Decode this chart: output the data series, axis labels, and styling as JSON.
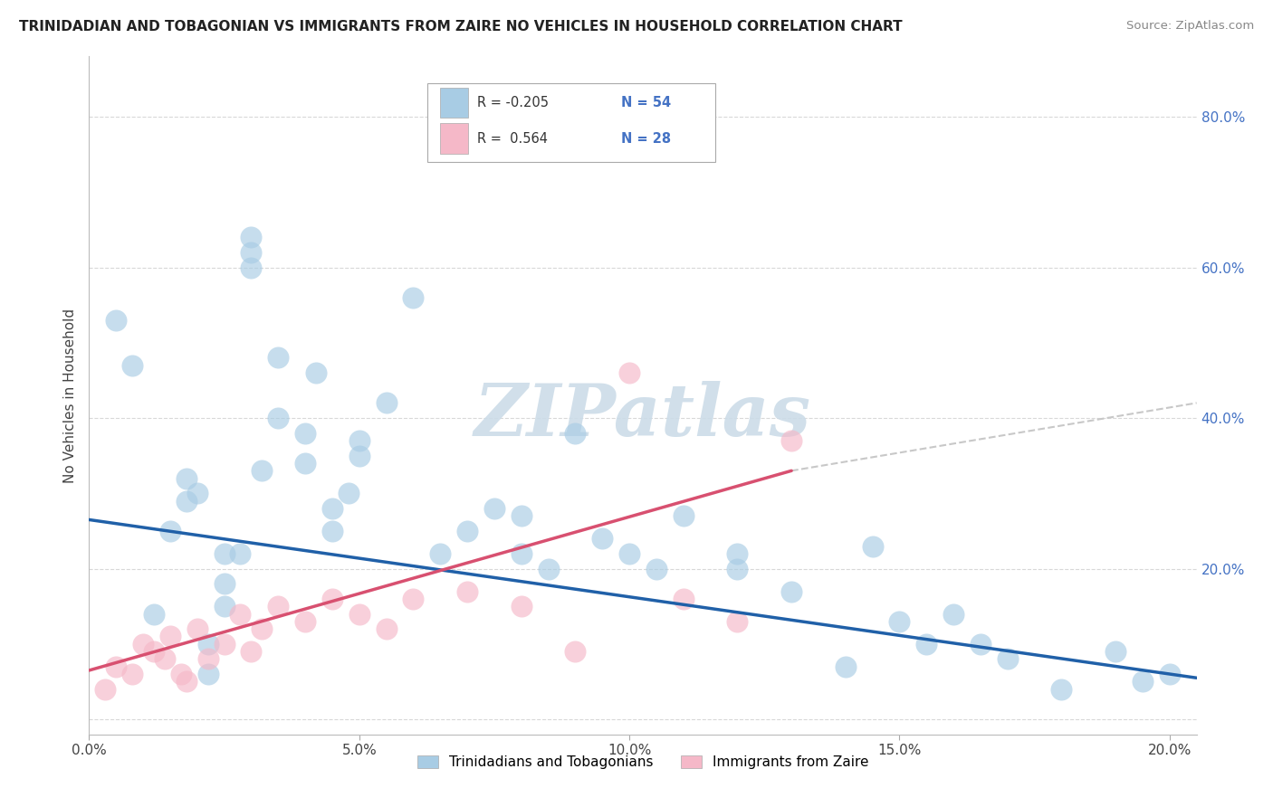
{
  "title": "TRINIDADIAN AND TOBAGONIAN VS IMMIGRANTS FROM ZAIRE NO VEHICLES IN HOUSEHOLD CORRELATION CHART",
  "source": "Source: ZipAtlas.com",
  "ylabel": "No Vehicles in Household",
  "xlim": [
    0.0,
    0.205
  ],
  "ylim": [
    -0.02,
    0.88
  ],
  "xticks": [
    0.0,
    0.05,
    0.1,
    0.15,
    0.2
  ],
  "xtick_labels": [
    "0.0%",
    "5.0%",
    "10.0%",
    "15.0%",
    "20.0%"
  ],
  "yticks": [
    0.0,
    0.2,
    0.4,
    0.6,
    0.8
  ],
  "ytick_labels_right": [
    "",
    "20.0%",
    "40.0%",
    "60.0%",
    "80.0%"
  ],
  "blue_color": "#a8cce4",
  "pink_color": "#f5b8c8",
  "blue_line_color": "#2060a8",
  "pink_line_color": "#d85070",
  "dash_line_color": "#c8c8c8",
  "legend_R_blue": "-0.205",
  "legend_N_blue": "54",
  "legend_R_pink": "0.564",
  "legend_N_pink": "28",
  "legend_label_blue": "Trinidadians and Tobagonians",
  "legend_label_pink": "Immigrants from Zaire",
  "watermark": "ZIPatlas",
  "blue_scatter_x": [
    0.005,
    0.008,
    0.012,
    0.015,
    0.018,
    0.018,
    0.02,
    0.022,
    0.022,
    0.025,
    0.025,
    0.025,
    0.028,
    0.03,
    0.03,
    0.03,
    0.032,
    0.035,
    0.035,
    0.04,
    0.04,
    0.042,
    0.045,
    0.045,
    0.048,
    0.05,
    0.05,
    0.055,
    0.06,
    0.065,
    0.07,
    0.075,
    0.08,
    0.08,
    0.085,
    0.09,
    0.095,
    0.1,
    0.105,
    0.11,
    0.12,
    0.12,
    0.13,
    0.14,
    0.145,
    0.15,
    0.155,
    0.16,
    0.165,
    0.17,
    0.18,
    0.19,
    0.195,
    0.2
  ],
  "blue_scatter_y": [
    0.53,
    0.47,
    0.14,
    0.25,
    0.32,
    0.29,
    0.3,
    0.1,
    0.06,
    0.18,
    0.22,
    0.15,
    0.22,
    0.64,
    0.6,
    0.62,
    0.33,
    0.48,
    0.4,
    0.34,
    0.38,
    0.46,
    0.28,
    0.25,
    0.3,
    0.35,
    0.37,
    0.42,
    0.56,
    0.22,
    0.25,
    0.28,
    0.22,
    0.27,
    0.2,
    0.38,
    0.24,
    0.22,
    0.2,
    0.27,
    0.22,
    0.2,
    0.17,
    0.07,
    0.23,
    0.13,
    0.1,
    0.14,
    0.1,
    0.08,
    0.04,
    0.09,
    0.05,
    0.06
  ],
  "pink_scatter_x": [
    0.003,
    0.005,
    0.008,
    0.01,
    0.012,
    0.014,
    0.015,
    0.017,
    0.018,
    0.02,
    0.022,
    0.025,
    0.028,
    0.03,
    0.032,
    0.035,
    0.04,
    0.045,
    0.05,
    0.055,
    0.06,
    0.07,
    0.08,
    0.09,
    0.1,
    0.11,
    0.12,
    0.13
  ],
  "pink_scatter_y": [
    0.04,
    0.07,
    0.06,
    0.1,
    0.09,
    0.08,
    0.11,
    0.06,
    0.05,
    0.12,
    0.08,
    0.1,
    0.14,
    0.09,
    0.12,
    0.15,
    0.13,
    0.16,
    0.14,
    0.12,
    0.16,
    0.17,
    0.15,
    0.09,
    0.46,
    0.16,
    0.13,
    0.37
  ],
  "blue_trend_x": [
    0.0,
    0.205
  ],
  "blue_trend_y": [
    0.265,
    0.055
  ],
  "pink_trend_x": [
    0.0,
    0.13
  ],
  "pink_trend_y": [
    0.065,
    0.33
  ],
  "dash_trend_x": [
    0.13,
    0.205
  ],
  "dash_trend_y": [
    0.33,
    0.42
  ],
  "background_color": "#ffffff",
  "grid_color": "#d8d8d8"
}
